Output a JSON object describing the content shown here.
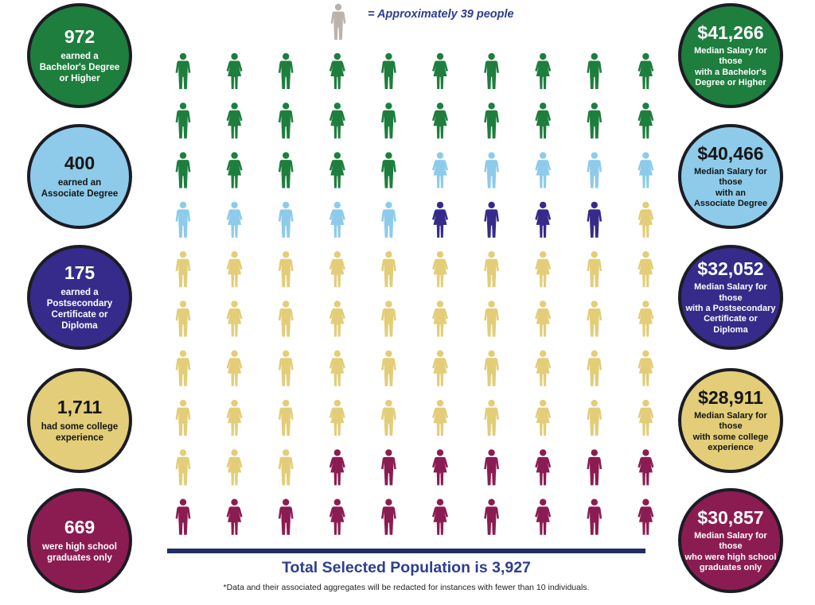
{
  "legend": {
    "text": "= Approximately 39 people",
    "icon": "person-icon",
    "icon_color": "#bbb3ab"
  },
  "chart_data": {
    "type": "pictograph",
    "unit_people_per_icon": 39,
    "grid": {
      "rows": 10,
      "columns": 10
    },
    "categories": [
      {
        "name": "bachelors",
        "count": "972",
        "count_label": "earned a\nBachelor's Degree\nor Higher",
        "salary": "$41,266",
        "salary_label": "Median Salary for those\nwith a Bachelor's\nDegree or Higher",
        "icons": 25,
        "color": "#1e7e3e",
        "circle_color": "#1e7e3e",
        "text_tone": "dark"
      },
      {
        "name": "associate",
        "count": "400",
        "count_label": "earned an\nAssociate Degree",
        "salary": "$40,466",
        "salary_label": "Median Salary for those\nwith an\nAssociate Degree",
        "icons": 10,
        "color": "#8ecbea",
        "circle_color": "#8ecbea",
        "text_tone": "light"
      },
      {
        "name": "postsecondary",
        "count": "175",
        "count_label": "earned a\nPostsecondary\nCertificate or\nDiploma",
        "salary": "$32,052",
        "salary_label": "Median Salary for those\nwith a Postsecondary\nCertificate or\nDiploma",
        "icons": 4,
        "color": "#362b8a",
        "circle_color": "#362b8a",
        "text_tone": "dark"
      },
      {
        "name": "some-college",
        "count": "1,711",
        "count_label": "had some college\nexperience",
        "salary": "$28,911",
        "salary_label": "Median Salary for those\nwith some college\nexperience",
        "icons": 44,
        "color": "#e3cd78",
        "circle_color": "#e3cd78",
        "text_tone": "light"
      },
      {
        "name": "high-school",
        "count": "669",
        "count_label": "were high school\ngraduates only",
        "salary": "$30,857",
        "salary_label": "Median Salary for those\nwho were high school\ngraduates only",
        "icons": 17,
        "color": "#8b1c52",
        "circle_color": "#8b1c52",
        "text_tone": "dark"
      }
    ]
  },
  "footer": {
    "total": "Total Selected Population is 3,927",
    "note": "*Data and their associated aggregates will be redacted for instances with fewer than 10 individuals."
  }
}
